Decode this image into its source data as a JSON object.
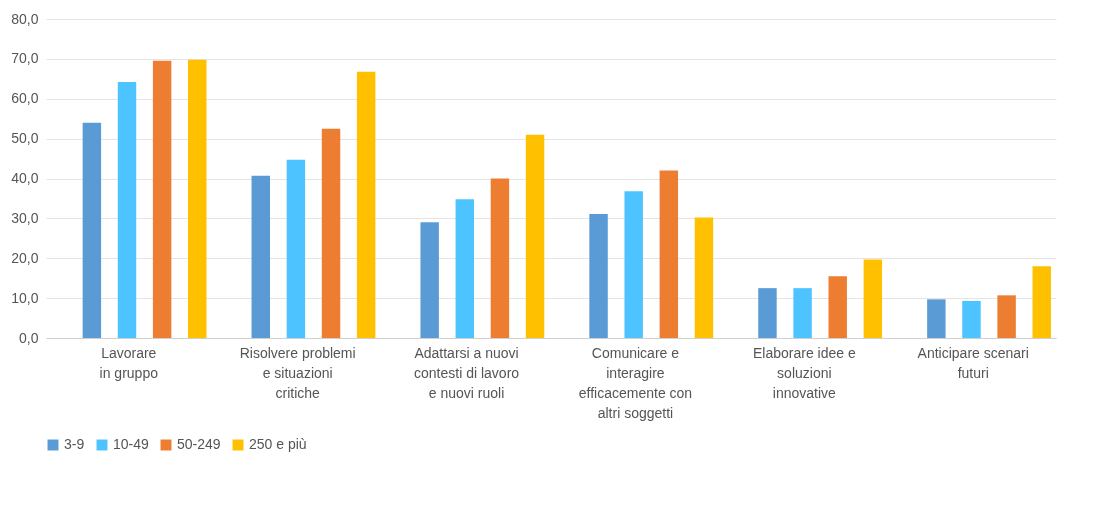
{
  "chart_data": {
    "type": "bar",
    "categories": [
      "Lavorare\nin gruppo",
      "Risolvere problemi\ne situazioni\ncritiche",
      "Adattarsi a nuovi\ncontesti di lavoro\ne nuovi ruoli",
      "Comunicare e\ninteragire\nefficacemente con\naltri soggetti",
      "Elaborare idee e\nsoluzioni\ninnovative",
      "Anticipare scenari\nfuturi"
    ],
    "series": [
      {
        "name": "3-9",
        "color": "#5b9bd5",
        "values": [
          54.0,
          40.7,
          29.0,
          31.1,
          12.5,
          9.7
        ]
      },
      {
        "name": "10-49",
        "color": "#4dc3ff",
        "values": [
          64.2,
          44.7,
          34.8,
          36.8,
          12.5,
          9.3
        ]
      },
      {
        "name": "50-249",
        "color": "#ed7d31",
        "values": [
          69.5,
          52.5,
          40.0,
          42.0,
          15.5,
          10.7
        ]
      },
      {
        "name": "250 e più",
        "color": "#ffc000",
        "values": [
          69.8,
          66.8,
          51.0,
          30.2,
          19.7,
          18.0
        ]
      }
    ],
    "ylim": [
      0,
      80
    ],
    "yticks": [
      {
        "value": 0,
        "label": "0,0"
      },
      {
        "value": 10,
        "label": "10,0"
      },
      {
        "value": 20,
        "label": "20,0"
      },
      {
        "value": 30,
        "label": "30,0"
      },
      {
        "value": 40,
        "label": "40,0"
      },
      {
        "value": 50,
        "label": "50,0"
      },
      {
        "value": 60,
        "label": "60,0"
      },
      {
        "value": 70,
        "label": "70,0"
      },
      {
        "value": 80,
        "label": "80,0"
      }
    ],
    "grid": "y",
    "legend": "bottom"
  }
}
